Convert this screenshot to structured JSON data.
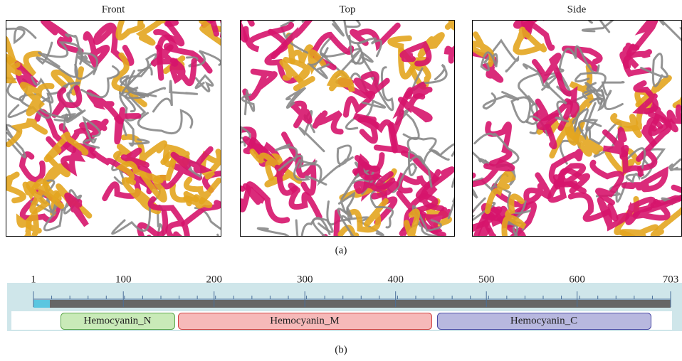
{
  "panel_a": {
    "views": [
      "Front",
      "Top",
      "Side"
    ],
    "caption": "(a)"
  },
  "panel_b": {
    "ruler": {
      "ticks": [
        1,
        100,
        200,
        300,
        400,
        500,
        600,
        703
      ]
    },
    "domains": [
      "Hemocyanin_N",
      "Hemocyanin_M",
      "Hemocyanin_C"
    ],
    "caption": "(b)"
  }
}
